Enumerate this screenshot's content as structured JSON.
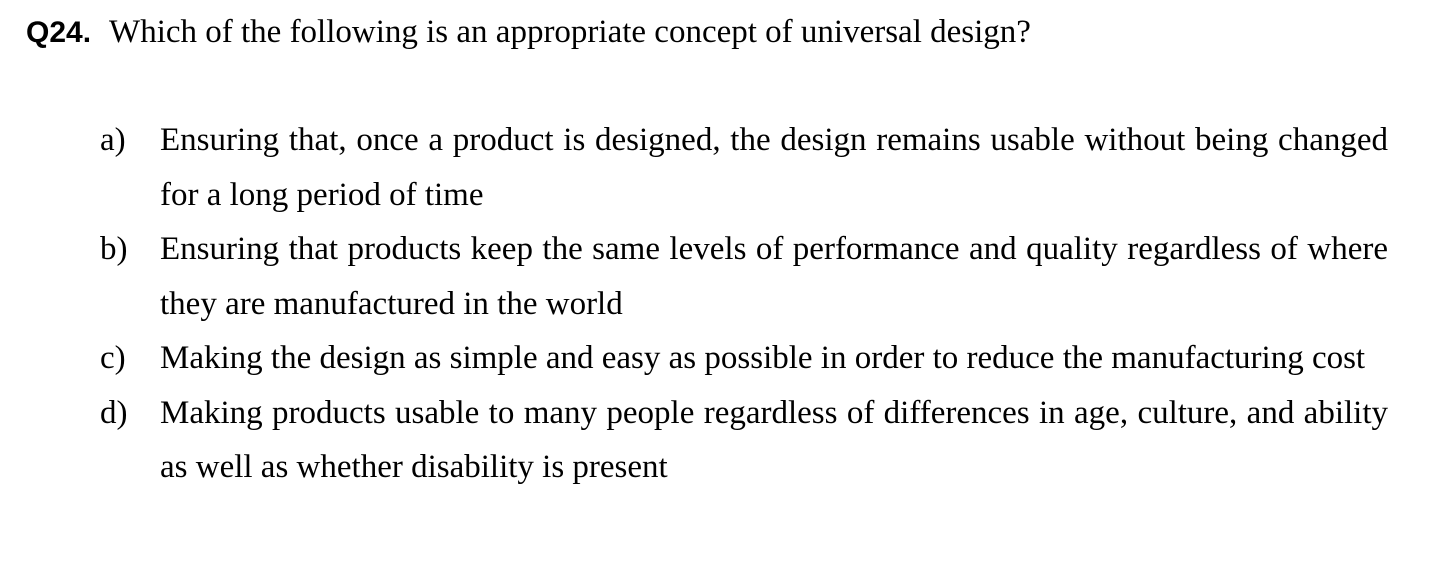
{
  "question": {
    "number": "Q24.",
    "text": "Which of the following is an appropriate concept of universal design?"
  },
  "options": [
    {
      "label": "a)",
      "text": "Ensuring that, once a product is designed, the design remains usable without being changed for a long period of time"
    },
    {
      "label": "b)",
      "text": "Ensuring that products keep the same levels of performance and quality regardless of where they are manufactured in the world"
    },
    {
      "label": "c)",
      "text": "Making the design as simple and easy as possible in order to reduce the manufacturing cost"
    },
    {
      "label": "d)",
      "text": "Making products usable to many people regardless of differences in age, culture, and ability as well as whether disability is present"
    }
  ]
}
